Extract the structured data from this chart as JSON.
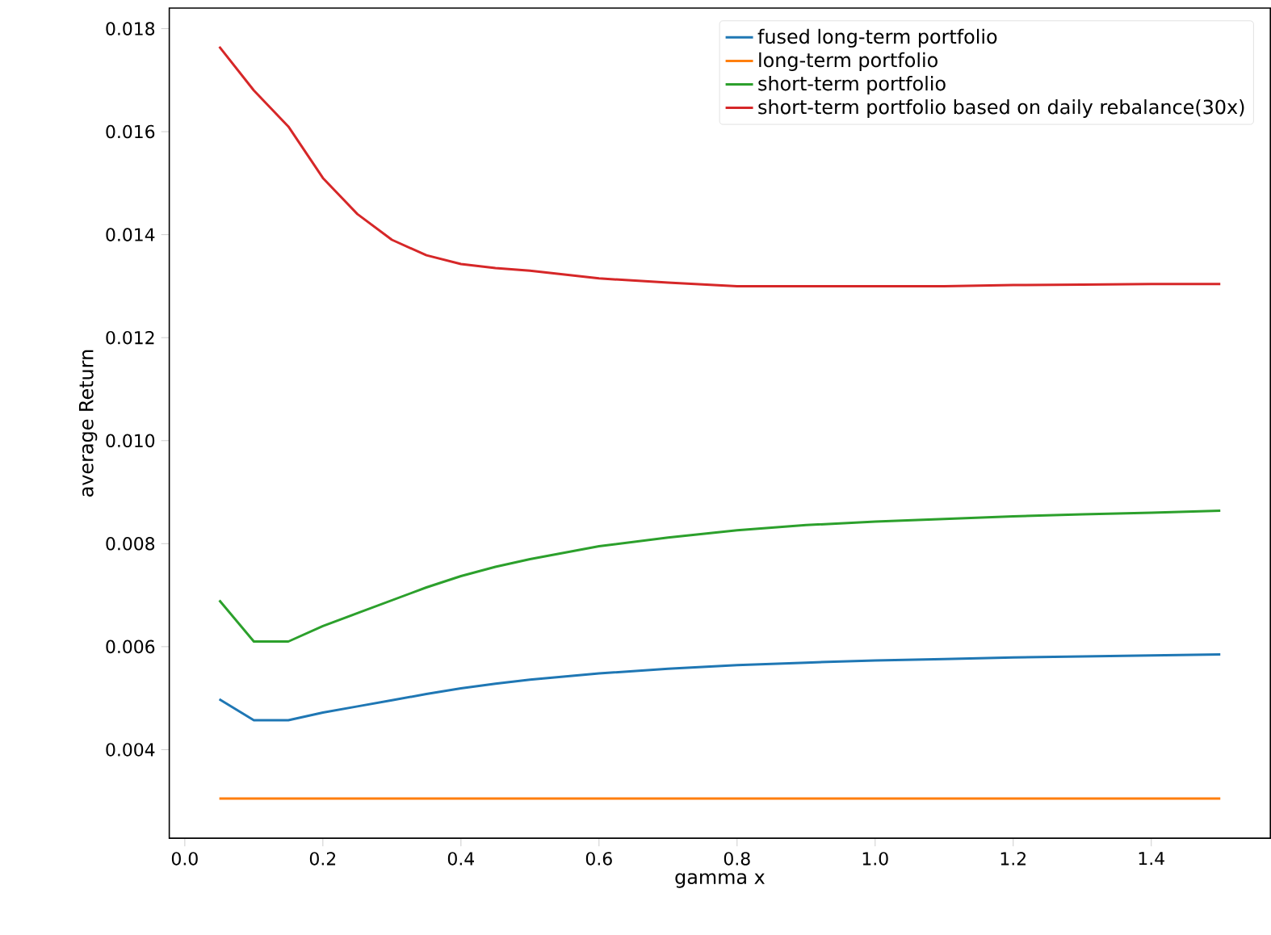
{
  "chart_data": {
    "type": "line",
    "xlabel": "gamma x",
    "ylabel": "average Return",
    "x": [
      0.05,
      0.1,
      0.15,
      0.2,
      0.25,
      0.3,
      0.35,
      0.4,
      0.45,
      0.5,
      0.6,
      0.7,
      0.8,
      0.9,
      1.0,
      1.1,
      1.2,
      1.3,
      1.4,
      1.5
    ],
    "series": [
      {
        "name": "fused long-term portfolio",
        "color": "#1f77b4",
        "values": [
          0.00498,
          0.00457,
          0.00457,
          0.00472,
          0.00484,
          0.00496,
          0.00508,
          0.00519,
          0.00528,
          0.00536,
          0.00548,
          0.00557,
          0.00564,
          0.00569,
          0.00573,
          0.00576,
          0.00579,
          0.00581,
          0.00583,
          0.00585
        ]
      },
      {
        "name": "long-term portfolio",
        "color": "#ff7f0e",
        "values": [
          0.00305,
          0.00305,
          0.00305,
          0.00305,
          0.00305,
          0.00305,
          0.00305,
          0.00305,
          0.00305,
          0.00305,
          0.00305,
          0.00305,
          0.00305,
          0.00305,
          0.00305,
          0.00305,
          0.00305,
          0.00305,
          0.00305,
          0.00305
        ]
      },
      {
        "name": "short-term portfolio",
        "color": "#2ca02c",
        "values": [
          0.0069,
          0.0061,
          0.0061,
          0.0064,
          0.00665,
          0.0069,
          0.00715,
          0.00737,
          0.00755,
          0.0077,
          0.00795,
          0.00812,
          0.00826,
          0.00836,
          0.00843,
          0.00848,
          0.00853,
          0.00857,
          0.0086,
          0.00864
        ]
      },
      {
        "name": "short-term portfolio based on daily rebalance(30x)",
        "color": "#d62728",
        "values": [
          0.01765,
          0.0168,
          0.0161,
          0.0151,
          0.0144,
          0.0139,
          0.0136,
          0.01343,
          0.01335,
          0.0133,
          0.01315,
          0.01307,
          0.013,
          0.013,
          0.013,
          0.013,
          0.01302,
          0.01303,
          0.01304,
          0.01304
        ]
      }
    ],
    "xlim": [
      -0.0225,
      1.5725
    ],
    "ylim": [
      0.00228,
      0.0184
    ],
    "xticks": [
      {
        "value": 0.0,
        "label": "0.0"
      },
      {
        "value": 0.2,
        "label": "0.2"
      },
      {
        "value": 0.4,
        "label": "0.4"
      },
      {
        "value": 0.6,
        "label": "0.6"
      },
      {
        "value": 0.8,
        "label": "0.8"
      },
      {
        "value": 1.0,
        "label": "1.0"
      },
      {
        "value": 1.2,
        "label": "1.2"
      },
      {
        "value": 1.4,
        "label": "1.4"
      }
    ],
    "yticks": [
      {
        "value": 0.004,
        "label": "0.004"
      },
      {
        "value": 0.006,
        "label": "0.006"
      },
      {
        "value": 0.008,
        "label": "0.008"
      },
      {
        "value": 0.01,
        "label": "0.010"
      },
      {
        "value": 0.012,
        "label": "0.012"
      },
      {
        "value": 0.014,
        "label": "0.014"
      },
      {
        "value": 0.016,
        "label": "0.016"
      },
      {
        "value": 0.018,
        "label": "0.018"
      }
    ],
    "grid": false,
    "legend": "top right",
    "marker": "none",
    "line_style": "solid"
  }
}
